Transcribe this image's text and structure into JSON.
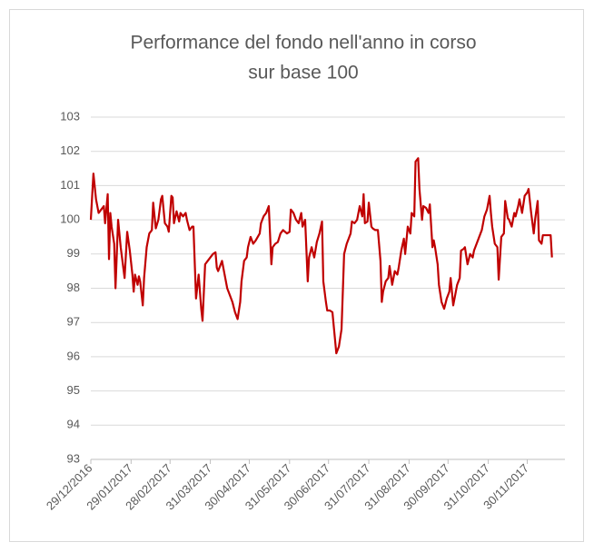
{
  "chart_data": {
    "type": "line",
    "title": "Performance del fondo nell'anno in corso",
    "subtitle": "sur base 100",
    "x": [
      "29/12/2016",
      "31/12/2016",
      "02/01/2017",
      "04/01/2017",
      "06/01/2017",
      "08/01/2017",
      "09/01/2017",
      "11/01/2017",
      "12/01/2017",
      "13/01/2017",
      "14/01/2017",
      "16/01/2017",
      "17/01/2017",
      "19/01/2017",
      "21/01/2017",
      "23/01/2017",
      "24/01/2017",
      "26/01/2017",
      "28/01/2017",
      "30/01/2017",
      "31/01/2017",
      "01/02/2017",
      "03/02/2017",
      "04/02/2017",
      "05/02/2017",
      "07/02/2017",
      "08/02/2017",
      "10/02/2017",
      "12/02/2017",
      "14/02/2017",
      "15/02/2017",
      "17/02/2017",
      "19/02/2017",
      "21/02/2017",
      "22/02/2017",
      "24/02/2017",
      "26/02/2017",
      "27/02/2017",
      "01/03/2017",
      "02/03/2017",
      "03/03/2017",
      "05/03/2017",
      "07/03/2017",
      "08/03/2017",
      "10/03/2017",
      "12/03/2017",
      "13/03/2017",
      "15/03/2017",
      "17/03/2017",
      "18/03/2017",
      "20/03/2017",
      "22/03/2017",
      "24/03/2017",
      "25/03/2017",
      "27/03/2017",
      "29/03/2017",
      "31/03/2017",
      "02/04/2017",
      "04/04/2017",
      "05/04/2017",
      "06/04/2017",
      "07/04/2017",
      "09/04/2017",
      "11/04/2017",
      "13/04/2017",
      "15/04/2017",
      "17/04/2017",
      "19/04/2017",
      "21/04/2017",
      "23/04/2017",
      "24/04/2017",
      "26/04/2017",
      "28/04/2017",
      "29/04/2017",
      "01/05/2017",
      "03/05/2017",
      "05/05/2017",
      "08/05/2017",
      "09/05/2017",
      "11/05/2017",
      "13/05/2017",
      "15/05/2017",
      "17/05/2017",
      "18/05/2017",
      "20/05/2017",
      "22/05/2017",
      "24/05/2017",
      "26/05/2017",
      "29/05/2017",
      "31/05/2017",
      "01/06/2017",
      "03/06/2017",
      "05/06/2017",
      "07/06/2017",
      "09/06/2017",
      "10/06/2017",
      "12/06/2017",
      "14/06/2017",
      "15/06/2017",
      "17/06/2017",
      "19/06/2017",
      "21/06/2017",
      "23/06/2017",
      "25/06/2017",
      "26/06/2017",
      "28/06/2017",
      "29/06/2017",
      "01/07/2017",
      "03/07/2017",
      "05/07/2017",
      "06/07/2017",
      "08/07/2017",
      "10/07/2017",
      "12/07/2017",
      "14/07/2017",
      "17/07/2017",
      "18/07/2017",
      "20/07/2017",
      "22/07/2017",
      "24/07/2017",
      "26/07/2017",
      "27/07/2017",
      "28/07/2017",
      "30/07/2017",
      "31/07/2017",
      "02/08/2017",
      "03/08/2017",
      "05/08/2017",
      "07/08/2017",
      "09/08/2017",
      "10/08/2017",
      "11/08/2017",
      "13/08/2017",
      "15/08/2017",
      "16/08/2017",
      "18/08/2017",
      "20/08/2017",
      "22/08/2017",
      "23/08/2017",
      "25/08/2017",
      "27/08/2017",
      "28/08/2017",
      "30/08/2017",
      "01/09/2017",
      "02/09/2017",
      "04/09/2017",
      "05/09/2017",
      "07/09/2017",
      "08/09/2017",
      "10/09/2017",
      "11/09/2017",
      "13/09/2017",
      "15/09/2017",
      "16/09/2017",
      "18/09/2017",
      "19/09/2017",
      "20/09/2017",
      "22/09/2017",
      "23/09/2017",
      "25/09/2017",
      "27/09/2017",
      "29/09/2017",
      "01/10/2017",
      "02/10/2017",
      "04/10/2017",
      "05/10/2017",
      "07/10/2017",
      "09/10/2017",
      "10/10/2017",
      "12/10/2017",
      "13/10/2017",
      "15/10/2017",
      "17/10/2017",
      "19/10/2017",
      "20/10/2017",
      "22/10/2017",
      "24/10/2017",
      "26/10/2017",
      "28/10/2017",
      "30/10/2017",
      "01/11/2017",
      "02/11/2017",
      "03/11/2017",
      "05/11/2017",
      "07/11/2017",
      "08/11/2017",
      "10/11/2017",
      "12/11/2017",
      "13/11/2017",
      "15/11/2017",
      "16/11/2017",
      "18/11/2017",
      "20/11/2017",
      "21/11/2017",
      "23/11/2017",
      "24/11/2017",
      "26/11/2017",
      "28/11/2017",
      "30/11/2017",
      "01/12/2017",
      "03/12/2017",
      "05/12/2017",
      "06/12/2017",
      "08/12/2017",
      "09/12/2017",
      "11/12/2017",
      "12/12/2017",
      "14/12/2017",
      "16/12/2017",
      "18/12/2017",
      "19/12/2017"
    ],
    "series": [
      {
        "color": "#c00000",
        "values": [
          100.0,
          101.35,
          100.6,
          100.2,
          100.3,
          100.4,
          99.9,
          100.75,
          98.85,
          100.2,
          99.8,
          99.3,
          98.0,
          100.0,
          99.2,
          98.6,
          98.3,
          99.65,
          99.1,
          98.4,
          97.9,
          98.4,
          98.1,
          98.35,
          98.2,
          97.5,
          98.3,
          99.2,
          99.6,
          99.7,
          100.5,
          99.75,
          100.0,
          100.6,
          100.7,
          99.9,
          99.8,
          99.65,
          100.7,
          100.65,
          99.9,
          100.25,
          99.95,
          100.2,
          100.1,
          100.2,
          100.0,
          99.7,
          99.8,
          99.8,
          97.7,
          98.4,
          97.4,
          97.05,
          98.7,
          98.8,
          98.9,
          99.0,
          99.05,
          98.6,
          98.5,
          98.6,
          98.8,
          98.4,
          98.0,
          97.8,
          97.6,
          97.3,
          97.1,
          97.6,
          98.2,
          98.8,
          98.9,
          99.2,
          99.5,
          99.3,
          99.4,
          99.6,
          99.9,
          100.1,
          100.2,
          100.4,
          98.7,
          99.2,
          99.3,
          99.35,
          99.6,
          99.7,
          99.6,
          99.65,
          100.3,
          100.2,
          100.0,
          99.9,
          100.2,
          99.8,
          100.0,
          98.2,
          98.9,
          99.2,
          98.9,
          99.35,
          99.6,
          99.95,
          98.2,
          97.6,
          97.35,
          97.35,
          97.3,
          96.5,
          96.1,
          96.3,
          96.8,
          99.0,
          99.3,
          99.6,
          99.95,
          99.9,
          100.0,
          100.4,
          100.1,
          100.75,
          99.9,
          99.95,
          100.5,
          99.8,
          99.75,
          99.7,
          99.7,
          98.8,
          97.6,
          97.9,
          98.2,
          98.3,
          98.65,
          98.1,
          98.5,
          98.4,
          98.6,
          99.1,
          99.45,
          99.0,
          99.8,
          99.6,
          100.2,
          100.1,
          101.7,
          101.8,
          100.9,
          100.0,
          100.4,
          100.35,
          100.2,
          100.45,
          99.2,
          99.4,
          99.2,
          98.7,
          98.1,
          97.6,
          97.4,
          97.7,
          97.9,
          98.3,
          97.5,
          97.7,
          98.1,
          98.3,
          99.1,
          99.15,
          99.2,
          98.7,
          99.0,
          98.9,
          99.1,
          99.3,
          99.5,
          99.7,
          100.1,
          100.3,
          100.7,
          100.2,
          99.8,
          99.3,
          99.2,
          98.25,
          99.5,
          99.6,
          100.55,
          100.05,
          100.0,
          99.8,
          100.2,
          100.1,
          100.4,
          100.6,
          100.2,
          100.7,
          100.8,
          100.9,
          100.2,
          99.6,
          100.0,
          100.55,
          99.4,
          99.3,
          99.55,
          99.55,
          99.55,
          99.55,
          98.9
        ]
      }
    ],
    "xlim": [
      "29/12/2016",
      "29/12/2017"
    ],
    "xticks": [
      "29/12/2016",
      "29/01/2017",
      "28/02/2017",
      "31/03/2017",
      "30/04/2017",
      "31/05/2017",
      "30/06/2017",
      "31/07/2017",
      "31/08/2017",
      "30/09/2017",
      "31/10/2017",
      "30/11/2017"
    ],
    "ylim": [
      93,
      103
    ],
    "yticks": [
      93,
      94,
      95,
      96,
      97,
      98,
      99,
      100,
      101,
      102,
      103
    ],
    "grid": true
  }
}
